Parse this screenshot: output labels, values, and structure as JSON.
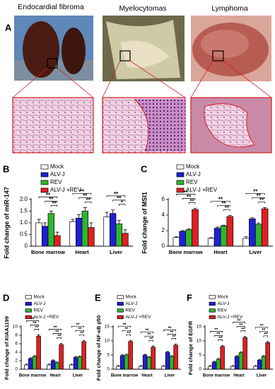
{
  "figure": {
    "panel": "A",
    "titles": [
      "Endocardial fibroma",
      "Myelocytomas",
      "Lymphoma"
    ]
  },
  "chart_data": [
    {
      "type": "bar",
      "panel": "B",
      "y_label": "Fold change of miR-147",
      "categories": [
        "Bone marrow",
        "Heart",
        "Liver"
      ],
      "ylim": [
        0,
        2
      ],
      "yticks": [
        0,
        0.5,
        {
          "value": 1,
          "label": "1.0"
        },
        1.5,
        {
          "value": 2,
          "label": "2.0"
        }
      ],
      "series": [
        {
          "name": "Mock",
          "color": "#ffffff",
          "values": [
            1.0,
            1.05,
            1.25
          ],
          "errors": [
            0.15,
            0.1,
            0.2
          ]
        },
        {
          "name": "ALV-J",
          "color": "#1f1fd6",
          "values": [
            0.85,
            1.2,
            1.4
          ],
          "errors": [
            0.15,
            0.15,
            0.15
          ]
        },
        {
          "name": "REV",
          "color": "#2fb52f",
          "values": [
            1.4,
            1.5,
            0.95
          ],
          "errors": [
            0.1,
            0.15,
            0.15
          ]
        },
        {
          "name": "ALV-J +REV",
          "color": "#e02020",
          "values": [
            0.45,
            0.8,
            0.55
          ],
          "errors": [
            0.15,
            0.2,
            0.15
          ]
        }
      ],
      "significance": [
        {
          "category": 0,
          "pair": [
            0,
            3
          ],
          "label": "**"
        },
        {
          "category": 0,
          "pair": [
            1,
            3
          ],
          "label": "**"
        },
        {
          "category": 0,
          "pair": [
            2,
            3
          ],
          "label": "**"
        },
        {
          "category": 1,
          "pair": [
            0,
            3
          ],
          "label": "**"
        },
        {
          "category": 1,
          "pair": [
            1,
            3
          ],
          "label": "**"
        },
        {
          "category": 1,
          "pair": [
            2,
            3
          ],
          "label": "**"
        },
        {
          "category": 2,
          "pair": [
            0,
            3
          ],
          "label": "**"
        },
        {
          "category": 2,
          "pair": [
            1,
            3
          ],
          "label": "**"
        },
        {
          "category": 2,
          "pair": [
            2,
            3
          ],
          "label": "*"
        }
      ]
    },
    {
      "type": "bar",
      "panel": "C",
      "y_label": "Fold change of MSI1",
      "categories": [
        "Bone marrow",
        "Heart",
        "Liver"
      ],
      "ylim": [
        0,
        6
      ],
      "yticks": [
        0,
        2,
        4,
        6
      ],
      "series": [
        {
          "name": "Mock",
          "color": "#ffffff",
          "values": [
            1.1,
            1.0,
            1.0
          ],
          "errors": [
            0.1,
            0.1,
            0.2
          ]
        },
        {
          "name": "ALV-J",
          "color": "#1f1fd6",
          "values": [
            1.9,
            2.3,
            3.5
          ],
          "errors": [
            0.1,
            0.15,
            0.15
          ]
        },
        {
          "name": "REV",
          "color": "#2fb52f",
          "values": [
            2.1,
            2.6,
            2.8
          ],
          "errors": [
            0.1,
            0.1,
            0.15
          ]
        },
        {
          "name": "ALV-J +REV",
          "color": "#e02020",
          "values": [
            4.7,
            3.8,
            4.8
          ],
          "errors": [
            0.15,
            0.15,
            0.15
          ]
        }
      ],
      "significance": [
        {
          "category": 0,
          "pair": [
            0,
            3
          ],
          "label": "**"
        },
        {
          "category": 0,
          "pair": [
            1,
            3
          ],
          "label": "**"
        },
        {
          "category": 0,
          "pair": [
            2,
            3
          ],
          "label": "**"
        },
        {
          "category": 1,
          "pair": [
            0,
            3
          ],
          "label": "**"
        },
        {
          "category": 1,
          "pair": [
            1,
            3
          ],
          "label": "**"
        },
        {
          "category": 1,
          "pair": [
            2,
            3
          ],
          "label": "**"
        },
        {
          "category": 2,
          "pair": [
            0,
            3
          ],
          "label": "**"
        },
        {
          "category": 2,
          "pair": [
            1,
            3
          ],
          "label": "**"
        },
        {
          "category": 2,
          "pair": [
            2,
            3
          ],
          "label": "**"
        }
      ]
    },
    {
      "type": "bar",
      "panel": "D",
      "y_label": "Fold change of KIAA1199",
      "categories": [
        "Bone marrow",
        "Heart",
        "Liver"
      ],
      "ylim": [
        0,
        10
      ],
      "yticks": [
        0,
        2,
        4,
        6,
        8,
        10
      ],
      "series": [
        {
          "name": "Mock",
          "color": "#ffffff",
          "values": [
            1.0,
            1.0,
            1.0
          ],
          "errors": [
            0.2,
            0.2,
            0.2
          ]
        },
        {
          "name": "ALV-J",
          "color": "#1f1fd6",
          "values": [
            2.5,
            2.0,
            2.8
          ],
          "errors": [
            0.2,
            0.2,
            0.2
          ]
        },
        {
          "name": "REV",
          "color": "#2fb52f",
          "values": [
            3.0,
            1.5,
            2.9
          ],
          "errors": [
            0.2,
            0.2,
            0.2
          ]
        },
        {
          "name": "ALV-J +REV",
          "color": "#e02020",
          "values": [
            7.8,
            5.8,
            6.5
          ],
          "errors": [
            0.3,
            0.3,
            0.3
          ]
        }
      ],
      "significance": [
        {
          "category": 0,
          "pair": [
            0,
            3
          ],
          "label": "**"
        },
        {
          "category": 0,
          "pair": [
            1,
            3
          ],
          "label": "**"
        },
        {
          "category": 0,
          "pair": [
            2,
            3
          ],
          "label": "**"
        },
        {
          "category": 1,
          "pair": [
            0,
            3
          ],
          "label": "**"
        },
        {
          "category": 1,
          "pair": [
            1,
            3
          ],
          "label": "**"
        },
        {
          "category": 1,
          "pair": [
            2,
            3
          ],
          "label": "**"
        },
        {
          "category": 2,
          "pair": [
            0,
            3
          ],
          "label": "**"
        },
        {
          "category": 2,
          "pair": [
            1,
            3
          ],
          "label": "**"
        },
        {
          "category": 2,
          "pair": [
            2,
            3
          ],
          "label": "**"
        }
      ]
    },
    {
      "type": "bar",
      "panel": "E",
      "y_label": "Fold change of NF-κB p50",
      "categories": [
        "Bone marrow",
        "Heart",
        "Liver"
      ],
      "ylim": [
        0,
        15
      ],
      "yticks": [
        0,
        5,
        10,
        15
      ],
      "series": [
        {
          "name": "Mock",
          "color": "#ffffff",
          "values": [
            1.0,
            1.0,
            1.0
          ],
          "errors": [
            0.3,
            0.3,
            0.3
          ]
        },
        {
          "name": "ALV-J",
          "color": "#1f1fd6",
          "values": [
            4.8,
            5.0,
            6.0
          ],
          "errors": [
            0.3,
            0.3,
            0.3
          ]
        },
        {
          "name": "REV",
          "color": "#2fb52f",
          "values": [
            5.0,
            4.2,
            4.5
          ],
          "errors": [
            0.3,
            0.3,
            0.3
          ]
        },
        {
          "name": "ALV-J +REV",
          "color": "#e02020",
          "values": [
            9.8,
            7.8,
            8.5
          ],
          "errors": [
            0.4,
            0.4,
            0.4
          ]
        }
      ],
      "significance": [
        {
          "category": 0,
          "pair": [
            0,
            3
          ],
          "label": "**"
        },
        {
          "category": 0,
          "pair": [
            1,
            3
          ],
          "label": "**"
        },
        {
          "category": 0,
          "pair": [
            2,
            3
          ],
          "label": "**"
        },
        {
          "category": 1,
          "pair": [
            0,
            3
          ],
          "label": "**"
        },
        {
          "category": 1,
          "pair": [
            1,
            3
          ],
          "label": "**"
        },
        {
          "category": 1,
          "pair": [
            2,
            3
          ],
          "label": "**"
        },
        {
          "category": 2,
          "pair": [
            0,
            3
          ],
          "label": "**"
        },
        {
          "category": 2,
          "pair": [
            1,
            3
          ],
          "label": "**"
        },
        {
          "category": 2,
          "pair": [
            2,
            3
          ],
          "label": "**"
        }
      ]
    },
    {
      "type": "bar",
      "panel": "F",
      "y_label": "Fold change of EGFR",
      "categories": [
        "Bone marrow",
        "Heart",
        "Liver"
      ],
      "ylim": [
        0,
        15
      ],
      "yticks": [
        0,
        5,
        10,
        15
      ],
      "series": [
        {
          "name": "Mock",
          "color": "#ffffff",
          "values": [
            1.0,
            1.0,
            1.0
          ],
          "errors": [
            0.3,
            0.3,
            0.3
          ]
        },
        {
          "name": "ALV-J",
          "color": "#1f1fd6",
          "values": [
            2.5,
            4.5,
            3.2
          ],
          "errors": [
            0.3,
            0.3,
            0.3
          ]
        },
        {
          "name": "REV",
          "color": "#2fb52f",
          "values": [
            3.5,
            5.8,
            4.5
          ],
          "errors": [
            0.3,
            0.3,
            0.3
          ]
        },
        {
          "name": "ALV-J +REV",
          "color": "#e02020",
          "values": [
            8.0,
            11.2,
            9.4
          ],
          "errors": [
            0.4,
            0.4,
            0.4
          ]
        }
      ],
      "significance": [
        {
          "category": 0,
          "pair": [
            0,
            3
          ],
          "label": "**"
        },
        {
          "category": 0,
          "pair": [
            1,
            3
          ],
          "label": "**"
        },
        {
          "category": 0,
          "pair": [
            2,
            3
          ],
          "label": "**"
        },
        {
          "category": 1,
          "pair": [
            0,
            3
          ],
          "label": "**"
        },
        {
          "category": 1,
          "pair": [
            1,
            3
          ],
          "label": "**"
        },
        {
          "category": 1,
          "pair": [
            2,
            3
          ],
          "label": "**"
        },
        {
          "category": 2,
          "pair": [
            0,
            3
          ],
          "label": "**"
        },
        {
          "category": 2,
          "pair": [
            1,
            3
          ],
          "label": "**"
        },
        {
          "category": 2,
          "pair": [
            2,
            3
          ],
          "label": "**"
        }
      ]
    }
  ]
}
